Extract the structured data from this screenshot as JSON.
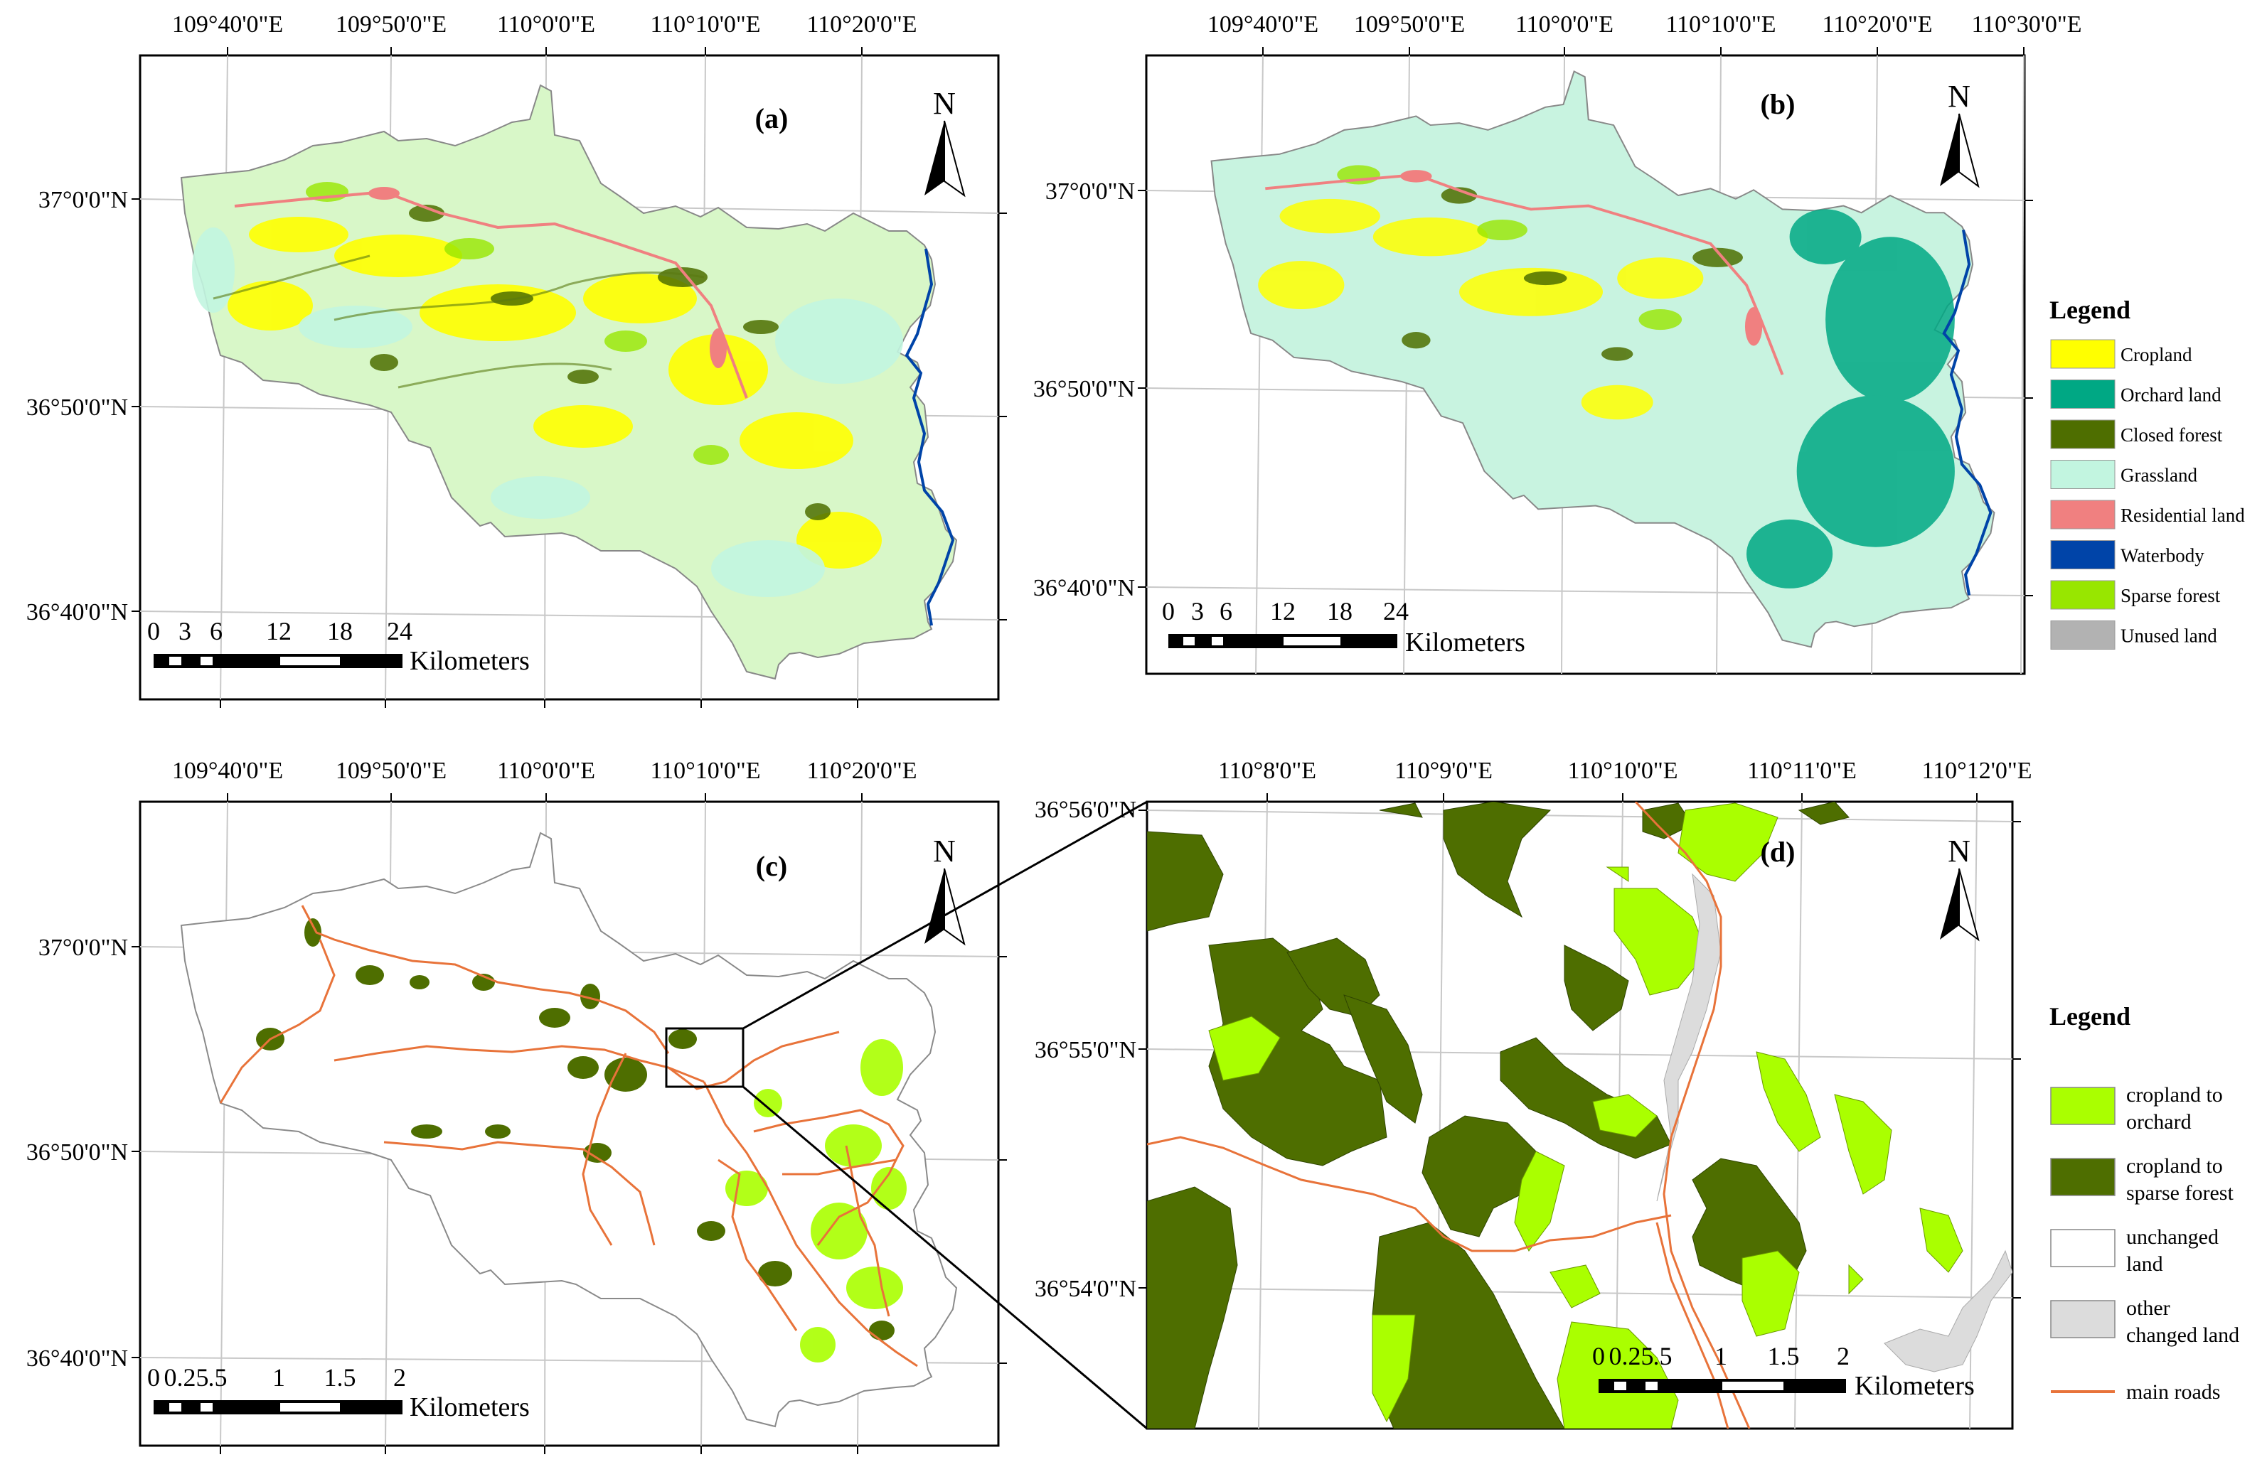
{
  "panels": [
    {
      "label": "(a)",
      "x_ticks": [
        "109°40'0\"E",
        "109°50'0\"E",
        "110°0'0\"E",
        "110°10'0\"E",
        "110°20'0\"E"
      ],
      "y_ticks": [
        "37°0'0\"N",
        "36°50'0\"N",
        "36°40'0\"N"
      ],
      "north": "N",
      "scale": {
        "numbers": [
          "0",
          "3",
          "6",
          "12",
          "18",
          "24"
        ],
        "unit": "Kilometers"
      }
    },
    {
      "label": "(b)",
      "x_ticks": [
        "109°40'0\"E",
        "109°50'0\"E",
        "110°0'0\"E",
        "110°10'0\"E",
        "110°20'0\"E",
        "110°30'0\"E"
      ],
      "y_ticks": [
        "37°0'0\"N",
        "36°50'0\"N",
        "36°40'0\"N"
      ],
      "north": "N",
      "scale": {
        "numbers": [
          "0",
          "3",
          "6",
          "12",
          "18",
          "24"
        ],
        "unit": "Kilometers"
      }
    },
    {
      "label": "(c)",
      "x_ticks": [
        "109°40'0\"E",
        "109°50'0\"E",
        "110°0'0\"E",
        "110°10'0\"E",
        "110°20'0\"E"
      ],
      "y_ticks": [
        "37°0'0\"N",
        "36°50'0\"N",
        "36°40'0\"N"
      ],
      "north": "N",
      "scale": {
        "numbers": [
          "0",
          "0.25",
          ".5",
          "1",
          "1.5",
          "2"
        ],
        "unit": "Kilometers"
      }
    },
    {
      "label": "(d)",
      "x_ticks": [
        "110°8'0\"E",
        "110°9'0\"E",
        "110°10'0\"E",
        "110°11'0\"E",
        "110°12'0\"E"
      ],
      "y_ticks": [
        "36°56'0\"N",
        "36°55'0\"N",
        "36°54'0\"N"
      ],
      "north": "N",
      "scale": {
        "numbers": [
          "0",
          "0.25",
          ".5",
          "1",
          "1.5",
          "2"
        ],
        "unit": "Kilometers"
      }
    }
  ],
  "legend_top": {
    "title": "Legend",
    "items": [
      {
        "label": "Cropland",
        "color": "#ffff00"
      },
      {
        "label": "Orchard land",
        "color": "#00a884"
      },
      {
        "label": "Closed forest",
        "color": "#4e6e00"
      },
      {
        "label": "Grassland",
        "color": "#c2f5e0"
      },
      {
        "label": "Residential land",
        "color": "#f08080"
      },
      {
        "label": "Waterbody",
        "color": "#0044a8"
      },
      {
        "label": "Sparse forest",
        "color": "#98e600"
      },
      {
        "label": "Unused land",
        "color": "#b2b2b2"
      }
    ]
  },
  "legend_bottom": {
    "title": "Legend",
    "items": [
      {
        "label_lines": [
          "cropland to",
          " orchard"
        ],
        "color": "#aaff00",
        "kind": "box"
      },
      {
        "label_lines": [
          "cropland to",
          "sparse forest"
        ],
        "color": "#4e6e00",
        "kind": "box"
      },
      {
        "label_lines": [
          "unchanged",
          "land"
        ],
        "color": "#ffffff",
        "kind": "box"
      },
      {
        "label_lines": [
          "other",
          "changed land"
        ],
        "color": "#dcdcdc",
        "kind": "box"
      },
      {
        "label_lines": [
          "main roads"
        ],
        "color": "#e8733a",
        "kind": "line"
      }
    ]
  },
  "colors": {
    "cropland": "#ffff00",
    "orchard": "#00a884",
    "closed_forest": "#4e6e00",
    "grassland": "#c2f5e0",
    "residential": "#f08080",
    "water": "#0044a8",
    "sparse_forest": "#98e600",
    "road": "#e8733a",
    "to_orchard": "#aaff00",
    "to_sparse_forest": "#4e6e00",
    "other_changed": "#dcdcdc"
  }
}
